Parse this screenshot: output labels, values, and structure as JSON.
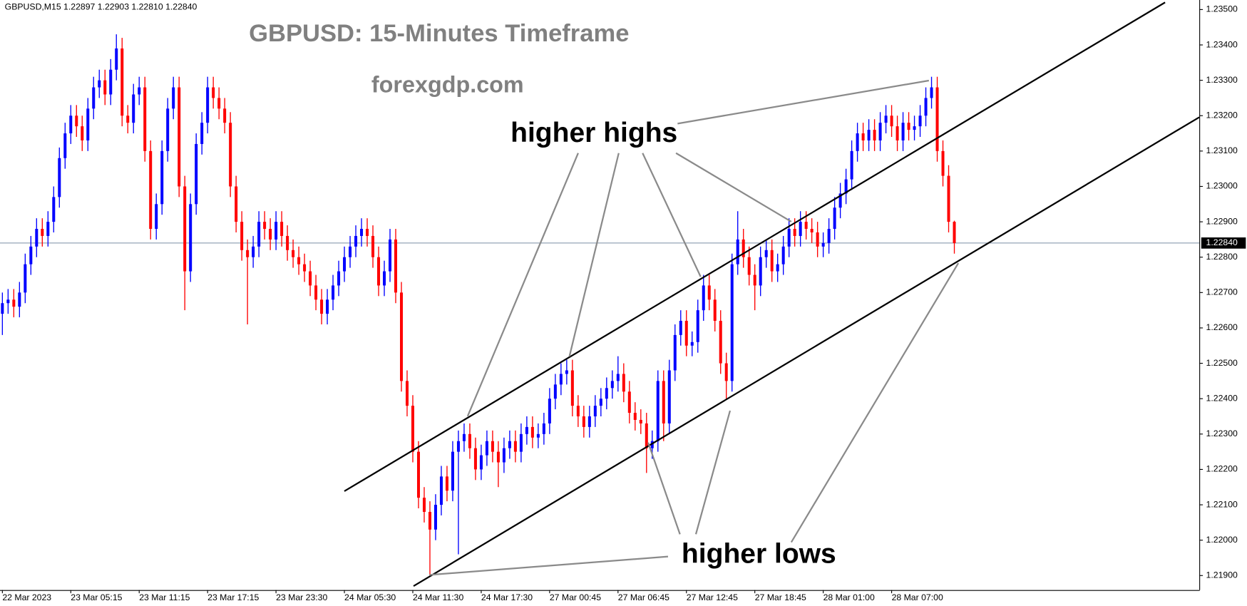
{
  "chart_data": {
    "type": "candlestick",
    "symbol_info": "GBPUSD,M15  1.22897 1.22903 1.22810 1.22840",
    "title": "GBPUSD: 15-Minutes Timeframe",
    "subtitle": "forexgdp.com",
    "annotations": [
      "higher highs",
      "higher lows"
    ],
    "up_color": "#0000ff",
    "down_color": "#ff0000",
    "categories": [
      "22 Mar 2023",
      null,
      null,
      null,
      null,
      null,
      null,
      null,
      null,
      null,
      null,
      null,
      "23 Mar 05:15",
      null,
      null,
      null,
      null,
      null,
      null,
      null,
      null,
      null,
      null,
      null,
      "23 Mar 11:15",
      null,
      null,
      null,
      null,
      null,
      null,
      null,
      null,
      null,
      null,
      null,
      "23 Mar 17:15",
      null,
      null,
      null,
      null,
      null,
      null,
      null,
      null,
      null,
      null,
      null,
      "23 Mar 23:30",
      null,
      null,
      null,
      null,
      null,
      null,
      null,
      null,
      null,
      null,
      null,
      "24 Mar 05:30",
      null,
      null,
      null,
      null,
      null,
      null,
      null,
      null,
      null,
      null,
      null,
      "24 Mar 11:30",
      null,
      null,
      null,
      null,
      null,
      null,
      null,
      null,
      null,
      null,
      null,
      "24 Mar 17:30",
      null,
      null,
      null,
      null,
      null,
      null,
      null,
      null,
      null,
      null,
      null,
      "27 Mar 00:45",
      null,
      null,
      null,
      null,
      null,
      null,
      null,
      null,
      null,
      null,
      null,
      "27 Mar 06:45",
      null,
      null,
      null,
      null,
      null,
      null,
      null,
      null,
      null,
      null,
      null,
      "27 Mar 12:45",
      null,
      null,
      null,
      null,
      null,
      null,
      null,
      null,
      null,
      null,
      null,
      "27 Mar 18:45",
      null,
      null,
      null,
      null,
      null,
      null,
      null,
      null,
      null,
      null,
      null,
      "28 Mar 01:00",
      null,
      null,
      null,
      null,
      null,
      null,
      null,
      null,
      null,
      null,
      null,
      "28 Mar 07:00",
      null,
      null,
      null,
      null,
      null,
      null,
      null,
      null,
      null,
      null,
      null
    ],
    "open": [
      1.2264,
      1.2267,
      1.2268,
      1.2266,
      1.227,
      1.2278,
      1.2283,
      1.2288,
      1.2286,
      1.229,
      1.2297,
      1.2308,
      1.2315,
      1.232,
      1.2317,
      1.2313,
      1.2322,
      1.2328,
      1.233,
      1.2326,
      1.2333,
      1.2339,
      1.232,
      1.2318,
      1.2326,
      1.2328,
      1.231,
      1.2288,
      1.2295,
      1.231,
      1.2322,
      1.2328,
      1.23,
      1.2276,
      1.2295,
      1.2312,
      1.2318,
      1.2328,
      1.2325,
      1.2322,
      1.2318,
      1.23,
      1.229,
      1.2282,
      1.228,
      1.2283,
      1.229,
      1.2288,
      1.2285,
      1.229,
      1.2286,
      1.2282,
      1.228,
      1.2278,
      1.2276,
      1.2272,
      1.2268,
      1.2264,
      1.2268,
      1.2272,
      1.2276,
      1.228,
      1.2283,
      1.2286,
      1.2288,
      1.2286,
      1.228,
      1.2272,
      1.2276,
      1.2285,
      1.227,
      1.2245,
      1.2238,
      1.2225,
      1.2212,
      1.2208,
      1.2203,
      1.221,
      1.2218,
      1.2214,
      1.2225,
      1.2228,
      1.223,
      1.2226,
      1.222,
      1.2224,
      1.2228,
      1.2225,
      1.2222,
      1.2226,
      1.2228,
      1.2225,
      1.223,
      1.2232,
      1.2229,
      1.223,
      1.2233,
      1.224,
      1.2244,
      1.2247,
      1.2248,
      1.2238,
      1.2235,
      1.2232,
      1.2235,
      1.2238,
      1.224,
      1.2243,
      1.2245,
      1.2247,
      1.2242,
      1.2236,
      1.2234,
      1.2233,
      1.2226,
      1.2228,
      1.2245,
      1.2233,
      1.2248,
      1.2258,
      1.2262,
      1.2255,
      1.2256,
      1.2265,
      1.2272,
      1.2268,
      1.2262,
      1.225,
      1.2245,
      1.2278,
      1.2285,
      1.228,
      1.2275,
      1.2272,
      1.228,
      1.2282,
      1.2276,
      1.2278,
      1.2283,
      1.2288,
      1.2286,
      1.229,
      1.2288,
      1.2287,
      1.2283,
      1.2284,
      1.2288,
      1.2294,
      1.2298,
      1.2302,
      1.231,
      1.2315,
      1.2313,
      1.2316,
      1.2313,
      1.2318,
      1.232,
      1.2317,
      1.2313,
      1.2318,
      1.2316,
      1.2317,
      1.232,
      1.2325,
      1.2328,
      1.231,
      1.2303,
      1.229
    ],
    "high": [
      1.227,
      1.2271,
      1.2271,
      1.2273,
      1.2281,
      1.2286,
      1.2291,
      1.2291,
      1.2293,
      1.23,
      1.2311,
      1.2318,
      1.2323,
      1.2323,
      1.232,
      1.2325,
      1.2331,
      1.2333,
      1.2333,
      1.2336,
      1.2343,
      1.2342,
      1.2323,
      1.2329,
      1.2331,
      1.2331,
      1.2313,
      1.2298,
      1.2313,
      1.2325,
      1.2331,
      1.2331,
      1.2303,
      1.2298,
      1.2315,
      1.2321,
      1.2331,
      1.2331,
      1.2328,
      1.2325,
      1.2321,
      1.2303,
      1.2293,
      1.2285,
      1.2286,
      1.2293,
      1.2293,
      1.2291,
      1.2293,
      1.2293,
      1.2289,
      1.2285,
      1.2283,
      1.2281,
      1.2279,
      1.2275,
      1.2271,
      1.2271,
      1.2275,
      1.2279,
      1.2283,
      1.2286,
      1.2289,
      1.2291,
      1.2291,
      1.2289,
      1.2283,
      1.2279,
      1.2288,
      1.2288,
      1.2273,
      1.2248,
      1.2241,
      1.2228,
      1.2215,
      1.2211,
      1.2213,
      1.2221,
      1.2221,
      1.2228,
      1.2231,
      1.2233,
      1.2233,
      1.2229,
      1.2227,
      1.2231,
      1.2231,
      1.2228,
      1.2229,
      1.2231,
      1.2231,
      1.2233,
      1.2235,
      1.2235,
      1.2233,
      1.2236,
      1.2243,
      1.2247,
      1.225,
      1.2251,
      1.2251,
      1.2241,
      1.2238,
      1.2238,
      1.2241,
      1.2243,
      1.2246,
      1.2248,
      1.2252,
      1.225,
      1.2245,
      1.2239,
      1.2237,
      1.2236,
      1.2231,
      1.2248,
      1.2248,
      1.2251,
      1.2261,
      1.2265,
      1.2265,
      1.2259,
      1.2268,
      1.2275,
      1.2275,
      1.2271,
      1.2265,
      1.2253,
      1.2281,
      1.2293,
      1.2288,
      1.2283,
      1.2278,
      1.2283,
      1.2285,
      1.2285,
      1.2281,
      1.2286,
      1.2291,
      1.2291,
      1.2293,
      1.2293,
      1.2291,
      1.229,
      1.2287,
      1.2291,
      1.2297,
      1.2301,
      1.2305,
      1.2313,
      1.2318,
      1.2318,
      1.2319,
      1.2319,
      1.2321,
      1.2323,
      1.2323,
      1.232,
      1.2321,
      1.2321,
      1.232,
      1.2323,
      1.2328,
      1.2331,
      1.2331,
      1.2313,
      1.2306,
      1.22903
    ],
    "low": [
      1.2258,
      1.2264,
      1.2263,
      1.2263,
      1.2267,
      1.2275,
      1.228,
      1.2283,
      1.2283,
      1.2287,
      1.2294,
      1.2305,
      1.2312,
      1.2314,
      1.231,
      1.231,
      1.2319,
      1.2325,
      1.2323,
      1.2323,
      1.233,
      1.2317,
      1.2315,
      1.2315,
      1.2323,
      1.2307,
      1.2285,
      1.2285,
      1.2292,
      1.2307,
      1.2319,
      1.2297,
      1.2265,
      1.2273,
      1.2292,
      1.2309,
      1.2315,
      1.2322,
      1.2319,
      1.2315,
      1.2297,
      1.2287,
      1.2279,
      1.2261,
      1.2277,
      1.228,
      1.2285,
      1.2282,
      1.2282,
      1.2283,
      1.2279,
      1.2277,
      1.2275,
      1.2273,
      1.2269,
      1.2265,
      1.2261,
      1.2261,
      1.2265,
      1.2269,
      1.2273,
      1.2277,
      1.228,
      1.2283,
      1.2283,
      1.2277,
      1.2269,
      1.2269,
      1.2273,
      1.2267,
      1.2242,
      1.2235,
      1.2222,
      1.2209,
      1.2205,
      1.219,
      1.22,
      1.2207,
      1.2211,
      1.2211,
      1.2196,
      1.2225,
      1.2223,
      1.2217,
      1.2217,
      1.2221,
      1.2222,
      1.2215,
      1.2219,
      1.2223,
      1.2222,
      1.2222,
      1.2227,
      1.2226,
      1.2226,
      1.2227,
      1.223,
      1.2237,
      1.2241,
      1.2244,
      1.2235,
      1.2232,
      1.2229,
      1.2229,
      1.2232,
      1.2235,
      1.2237,
      1.224,
      1.2242,
      1.2239,
      1.2233,
      1.2231,
      1.223,
      1.2219,
      1.2223,
      1.2225,
      1.2228,
      1.223,
      1.2245,
      1.2255,
      1.2252,
      1.2252,
      1.2253,
      1.2262,
      1.2265,
      1.2259,
      1.2247,
      1.224,
      1.2242,
      1.2275,
      1.2277,
      1.2272,
      1.2265,
      1.2269,
      1.2277,
      1.2273,
      1.2273,
      1.2275,
      1.228,
      1.2283,
      1.2283,
      1.2285,
      1.2284,
      1.228,
      1.228,
      1.2281,
      1.2285,
      1.2291,
      1.2295,
      1.2299,
      1.2307,
      1.231,
      1.231,
      1.231,
      1.231,
      1.2315,
      1.2314,
      1.231,
      1.231,
      1.2313,
      1.2313,
      1.2314,
      1.2317,
      1.2322,
      1.2307,
      1.23,
      1.2287,
      1.2281
    ],
    "close": [
      1.2267,
      1.2268,
      1.2266,
      1.227,
      1.2278,
      1.2283,
      1.2288,
      1.2286,
      1.229,
      1.2297,
      1.2308,
      1.2315,
      1.232,
      1.2317,
      1.2313,
      1.2322,
      1.2328,
      1.233,
      1.2326,
      1.2333,
      1.2339,
      1.232,
      1.2318,
      1.2326,
      1.2328,
      1.231,
      1.2288,
      1.2295,
      1.231,
      1.2322,
      1.2328,
      1.23,
      1.2276,
      1.2295,
      1.2312,
      1.2318,
      1.2328,
      1.2325,
      1.2322,
      1.2318,
      1.23,
      1.229,
      1.2282,
      1.228,
      1.2283,
      1.229,
      1.2288,
      1.2285,
      1.229,
      1.2286,
      1.2282,
      1.228,
      1.2278,
      1.2276,
      1.2272,
      1.2268,
      1.2264,
      1.2268,
      1.2272,
      1.2276,
      1.228,
      1.2283,
      1.2286,
      1.2288,
      1.2286,
      1.228,
      1.2272,
      1.2276,
      1.2285,
      1.227,
      1.2245,
      1.2238,
      1.2225,
      1.2212,
      1.2208,
      1.2203,
      1.221,
      1.2218,
      1.2214,
      1.2225,
      1.2228,
      1.223,
      1.2226,
      1.222,
      1.2224,
      1.2228,
      1.2225,
      1.2222,
      1.2226,
      1.2228,
      1.2225,
      1.223,
      1.2232,
      1.2229,
      1.223,
      1.2233,
      1.224,
      1.2244,
      1.2247,
      1.2248,
      1.2238,
      1.2235,
      1.2232,
      1.2235,
      1.2238,
      1.224,
      1.2243,
      1.2245,
      1.2247,
      1.2242,
      1.2236,
      1.2234,
      1.2233,
      1.2226,
      1.2228,
      1.2245,
      1.2233,
      1.2248,
      1.2258,
      1.2262,
      1.2255,
      1.2256,
      1.2265,
      1.2272,
      1.2268,
      1.2262,
      1.225,
      1.2245,
      1.2278,
      1.2285,
      1.228,
      1.2275,
      1.2272,
      1.228,
      1.2282,
      1.2276,
      1.2278,
      1.2283,
      1.2288,
      1.2286,
      1.229,
      1.2288,
      1.2287,
      1.2283,
      1.2284,
      1.2288,
      1.2294,
      1.2298,
      1.2302,
      1.231,
      1.2315,
      1.2313,
      1.2316,
      1.2313,
      1.2318,
      1.232,
      1.2317,
      1.2313,
      1.2318,
      1.2316,
      1.2317,
      1.232,
      1.2325,
      1.2328,
      1.231,
      1.2303,
      1.229,
      1.2284
    ],
    "current_price": {
      "value": 1.2284,
      "label": "1.22840"
    },
    "ylim": [
      1.21859,
      1.23527
    ],
    "yticks": [
      {
        "value": 1.219,
        "label": "1.21900"
      },
      {
        "value": 1.22,
        "label": "1.22000"
      },
      {
        "value": 1.221,
        "label": "1.22100"
      },
      {
        "value": 1.222,
        "label": "1.22200"
      },
      {
        "value": 1.223,
        "label": "1.22300"
      },
      {
        "value": 1.224,
        "label": "1.22400"
      },
      {
        "value": 1.225,
        "label": "1.22500"
      },
      {
        "value": 1.226,
        "label": "1.22600"
      },
      {
        "value": 1.227,
        "label": "1.22700"
      },
      {
        "value": 1.228,
        "label": "1.22800"
      },
      {
        "value": 1.229,
        "label": "1.22900"
      },
      {
        "value": 1.23,
        "label": "1.23000"
      },
      {
        "value": 1.231,
        "label": "1.23100"
      },
      {
        "value": 1.232,
        "label": "1.23200"
      },
      {
        "value": 1.233,
        "label": "1.23300"
      },
      {
        "value": 1.234,
        "label": "1.23400"
      },
      {
        "value": 1.235,
        "label": "1.23500"
      }
    ]
  }
}
